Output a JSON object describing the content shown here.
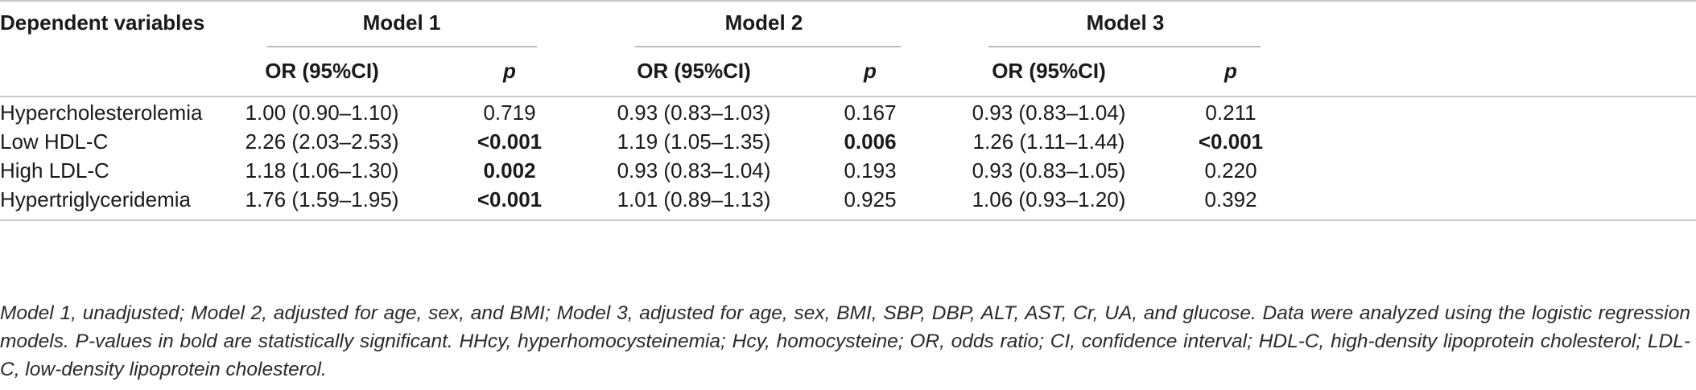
{
  "table": {
    "header": {
      "dependent": "Dependent variables",
      "models": [
        "Model 1",
        "Model 2",
        "Model 3"
      ],
      "or_label": "OR (95%CI)",
      "p_label": "p"
    },
    "rows": [
      {
        "label": "Hypercholesterolemia",
        "cells": [
          {
            "or": "1.00 (0.90–1.10)",
            "p": "0.719",
            "bold": false
          },
          {
            "or": "0.93 (0.83–1.03)",
            "p": "0.167",
            "bold": false
          },
          {
            "or": "0.93 (0.83–1.04)",
            "p": "0.211",
            "bold": false
          }
        ]
      },
      {
        "label": "Low HDL-C",
        "cells": [
          {
            "or": "2.26 (2.03–2.53)",
            "p": "<0.001",
            "bold": true
          },
          {
            "or": "1.19 (1.05–1.35)",
            "p": "0.006",
            "bold": true
          },
          {
            "or": "1.26 (1.11–1.44)",
            "p": "<0.001",
            "bold": true
          }
        ]
      },
      {
        "label": "High LDL-C",
        "cells": [
          {
            "or": "1.18 (1.06–1.30)",
            "p": "0.002",
            "bold": true
          },
          {
            "or": "0.93 (0.83–1.04)",
            "p": "0.193",
            "bold": false
          },
          {
            "or": "0.93 (0.83–1.05)",
            "p": "0.220",
            "bold": false
          }
        ]
      },
      {
        "label": "Hypertriglyceridemia",
        "cells": [
          {
            "or": "1.76 (1.59–1.95)",
            "p": "<0.001",
            "bold": true
          },
          {
            "or": "1.01 (0.89–1.13)",
            "p": "0.925",
            "bold": false
          },
          {
            "or": "1.06 (0.93–1.20)",
            "p": "0.392",
            "bold": false
          }
        ]
      }
    ]
  },
  "footnote": "Model 1, unadjusted; Model 2, adjusted for age, sex, and BMI; Model 3, adjusted for age, sex, BMI, SBP, DBP, ALT, AST, Cr, UA, and glucose. Data were analyzed using the logistic regression models. P-values in bold are statistically significant. HHcy, hyperhomocysteinemia; Hcy, homocysteine; OR, odds ratio; CI, confidence interval; HDL-C, high-density lipoprotein cholesterol; LDL-C, low-density lipoprotein cholesterol."
}
